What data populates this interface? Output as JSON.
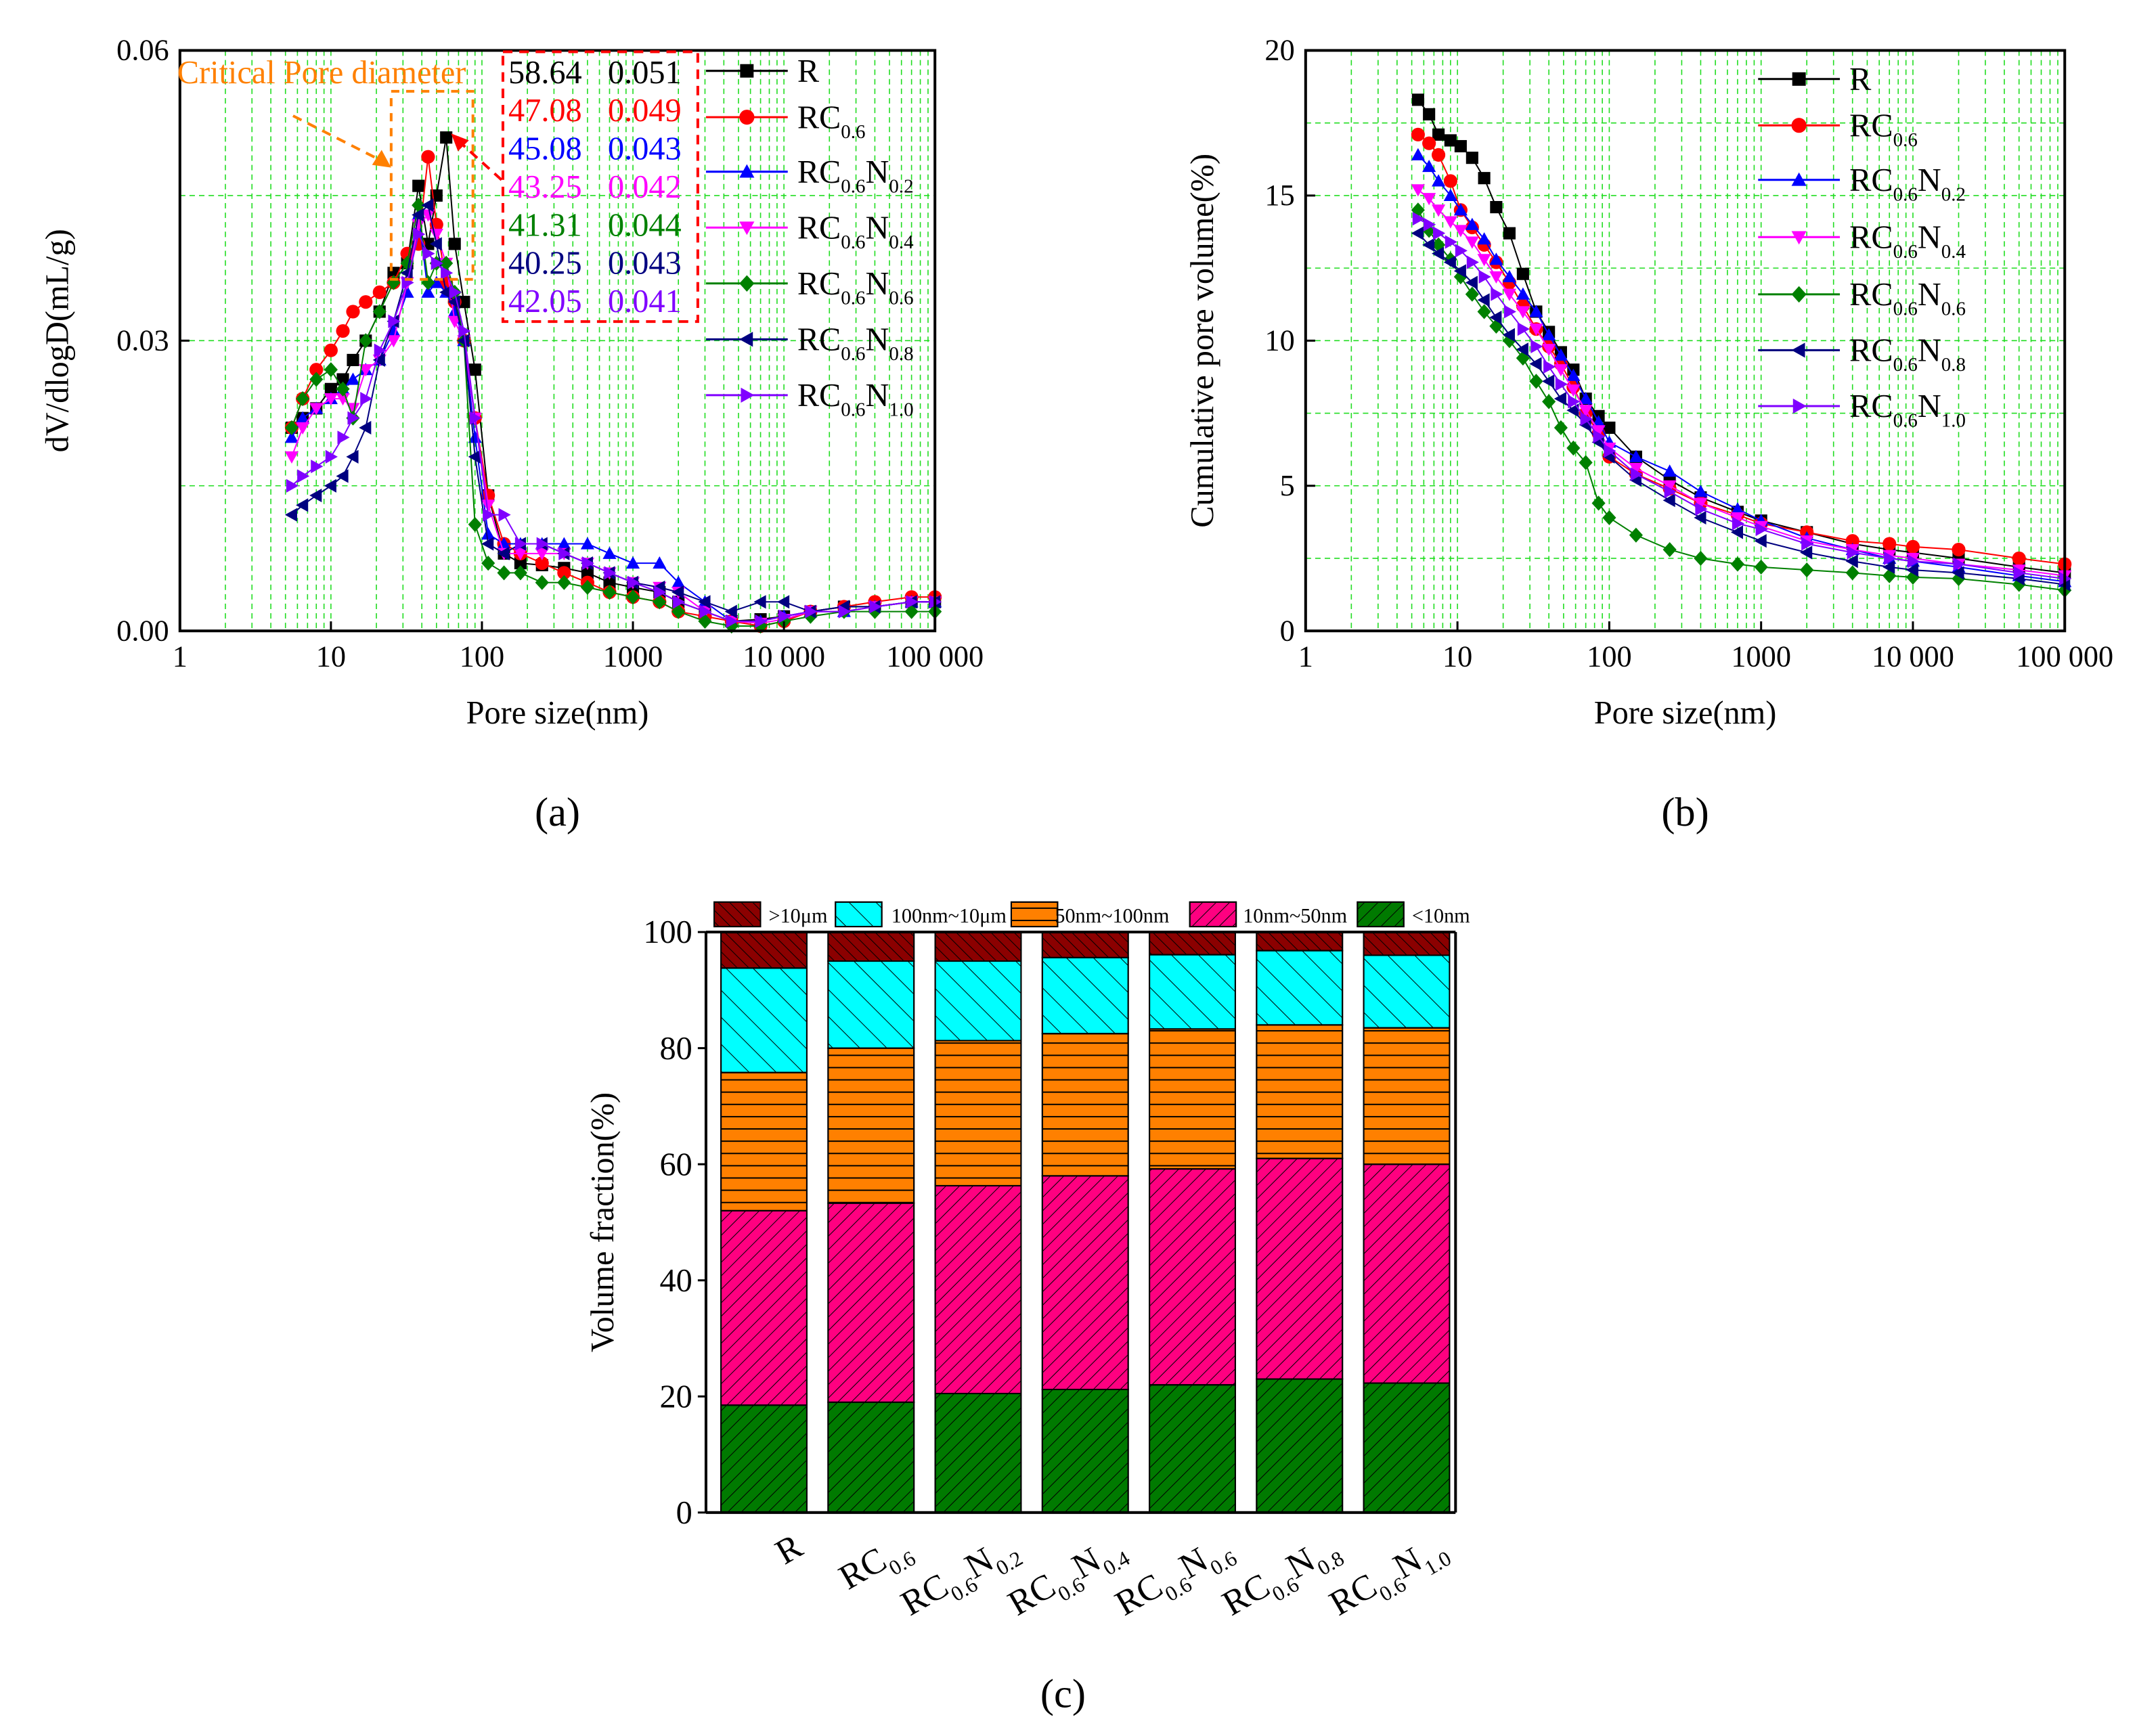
{
  "chart_data": [
    {
      "type": "line",
      "panel_label": "(a)",
      "xlabel": "Pore size(nm)",
      "ylabel": "dV/dlogD(mL/g)",
      "xscale": "log",
      "xlim": [
        1,
        100000
      ],
      "ylim": [
        0,
        0.06
      ],
      "xticks": [
        "1",
        "10",
        "100",
        "1000",
        "10 000",
        "100 000"
      ],
      "yticks": [
        "0.00",
        "0.03",
        "0.06"
      ],
      "grid": true,
      "legend_position": "top-right",
      "annotation": "Critical Pore diameter",
      "critical_table": [
        {
          "series": "R",
          "diameter": "58.64",
          "value": "0.051",
          "color": "#000000"
        },
        {
          "series": "RC0.6",
          "diameter": "47.08",
          "value": "0.049",
          "color": "#ff0000"
        },
        {
          "series": "RC0.6N0.2",
          "diameter": "45.08",
          "value": "0.043",
          "color": "#0000ff"
        },
        {
          "series": "RC0.6N0.4",
          "diameter": "43.25",
          "value": "0.042",
          "color": "#ff00ff"
        },
        {
          "series": "RC0.6N0.6",
          "diameter": "41.31",
          "value": "0.044",
          "color": "#008000"
        },
        {
          "series": "RC0.6N0.8",
          "diameter": "40.25",
          "value": "0.043",
          "color": "#000080"
        },
        {
          "series": "RC0.6N1.0",
          "diameter": "42.05",
          "value": "0.041",
          "color": "#8000ff"
        }
      ],
      "x": [
        5.5,
        6.5,
        8,
        10,
        12,
        14,
        17,
        21,
        26,
        32,
        38,
        44,
        50,
        58,
        66,
        76,
        90,
        110,
        140,
        180,
        250,
        350,
        500,
        700,
        1000,
        1500,
        2000,
        3000,
        4500,
        7000,
        10000,
        15000,
        25000,
        40000,
        70000,
        100000
      ],
      "series": [
        {
          "name": "R",
          "color": "#000000",
          "marker": "square",
          "values": [
            0.021,
            0.022,
            0.023,
            0.025,
            0.026,
            0.028,
            0.03,
            0.033,
            0.037,
            0.038,
            0.046,
            0.04,
            0.045,
            0.051,
            0.04,
            0.034,
            0.027,
            0.014,
            0.008,
            0.007,
            0.0068,
            0.0065,
            0.006,
            0.005,
            0.0045,
            0.004,
            0.003,
            0.002,
            0.001,
            0.0012,
            0.0015,
            0.002,
            0.0025,
            0.0025,
            0.003,
            0.003
          ]
        },
        {
          "name": "RC0.6",
          "color": "#ff0000",
          "marker": "circle",
          "values": [
            0.021,
            0.024,
            0.027,
            0.029,
            0.031,
            0.033,
            0.034,
            0.035,
            0.036,
            0.039,
            0.04,
            0.049,
            0.042,
            0.036,
            0.034,
            0.03,
            0.022,
            0.014,
            0.009,
            0.008,
            0.007,
            0.006,
            0.005,
            0.004,
            0.0035,
            0.003,
            0.002,
            0.0015,
            0.001,
            0.0005,
            0.001,
            0.002,
            0.0025,
            0.003,
            0.0035,
            0.0035
          ]
        },
        {
          "name": "RC0.6N0.2",
          "color": "#0000ff",
          "marker": "triangle-up",
          "values": [
            0.02,
            0.022,
            0.023,
            0.024,
            0.025,
            0.026,
            0.027,
            0.028,
            0.031,
            0.035,
            0.043,
            0.035,
            0.036,
            0.035,
            0.033,
            0.03,
            0.02,
            0.01,
            0.009,
            0.009,
            0.009,
            0.009,
            0.009,
            0.008,
            0.007,
            0.007,
            0.005,
            0.003,
            0.001,
            0.001,
            0.0015,
            0.002,
            0.002,
            0.0025,
            0.003,
            0.003
          ]
        },
        {
          "name": "RC0.6N0.4",
          "color": "#ff00ff",
          "marker": "triangle-down",
          "values": [
            0.018,
            0.021,
            0.023,
            0.024,
            0.024,
            0.023,
            0.027,
            0.028,
            0.03,
            0.036,
            0.042,
            0.043,
            0.041,
            0.038,
            0.032,
            0.03,
            0.022,
            0.013,
            0.008,
            0.008,
            0.008,
            0.008,
            0.007,
            0.006,
            0.005,
            0.0045,
            0.004,
            0.002,
            0.001,
            0.0008,
            0.0012,
            0.002,
            0.002,
            0.0025,
            0.003,
            0.003
          ]
        },
        {
          "name": "RC0.6N0.6",
          "color": "#008000",
          "marker": "diamond",
          "values": [
            0.021,
            0.024,
            0.026,
            0.027,
            0.025,
            0.022,
            0.03,
            0.033,
            0.036,
            0.038,
            0.044,
            0.036,
            0.038,
            0.038,
            0.035,
            0.03,
            0.011,
            0.007,
            0.006,
            0.006,
            0.005,
            0.005,
            0.0045,
            0.004,
            0.0035,
            0.003,
            0.002,
            0.001,
            0.0005,
            0.0005,
            0.001,
            0.0015,
            0.002,
            0.002,
            0.002,
            0.002
          ]
        },
        {
          "name": "RC0.6N0.8",
          "color": "#000080",
          "marker": "triangle-left",
          "values": [
            0.012,
            0.013,
            0.014,
            0.015,
            0.016,
            0.018,
            0.021,
            0.028,
            0.032,
            0.037,
            0.043,
            0.044,
            0.04,
            0.035,
            0.034,
            0.03,
            0.018,
            0.009,
            0.008,
            0.009,
            0.009,
            0.008,
            0.007,
            0.006,
            0.005,
            0.0045,
            0.004,
            0.003,
            0.002,
            0.003,
            0.003,
            0.002,
            0.0025,
            0.0025,
            0.003,
            0.003
          ]
        },
        {
          "name": "RC0.6N1.0",
          "color": "#8000ff",
          "marker": "triangle-right",
          "values": [
            0.015,
            0.016,
            0.017,
            0.018,
            0.02,
            0.022,
            0.024,
            0.029,
            0.032,
            0.036,
            0.041,
            0.039,
            0.038,
            0.037,
            0.035,
            0.031,
            0.022,
            0.012,
            0.012,
            0.009,
            0.009,
            0.008,
            0.007,
            0.006,
            0.005,
            0.004,
            0.003,
            0.002,
            0.001,
            0.001,
            0.0015,
            0.002,
            0.002,
            0.0025,
            0.003,
            0.003
          ]
        }
      ]
    },
    {
      "type": "line",
      "panel_label": "(b)",
      "xlabel": "Pore size(nm)",
      "ylabel": "Cumulative pore volume(%)",
      "xscale": "log",
      "xlim": [
        1,
        100000
      ],
      "ylim": [
        0,
        20
      ],
      "xticks": [
        "1",
        "10",
        "100",
        "1000",
        "10 000",
        "100 000"
      ],
      "yticks": [
        "0",
        "5",
        "10",
        "15",
        "20"
      ],
      "grid": true,
      "legend_position": "top-right",
      "x": [
        5.5,
        6.5,
        7.5,
        9,
        10.5,
        12.5,
        15,
        18,
        22,
        27,
        33,
        40,
        48,
        58,
        70,
        85,
        100,
        150,
        250,
        400,
        700,
        1000,
        2000,
        4000,
        7000,
        10000,
        20000,
        50000,
        100000
      ],
      "series": [
        {
          "name": "R",
          "color": "#000000",
          "marker": "square",
          "values": [
            18.3,
            17.8,
            17.1,
            16.9,
            16.7,
            16.3,
            15.6,
            14.6,
            13.7,
            12.3,
            11.0,
            10.3,
            9.6,
            9.0,
            8.0,
            7.4,
            7.0,
            6.0,
            5.2,
            4.6,
            4.1,
            3.8,
            3.4,
            3.0,
            2.8,
            2.7,
            2.5,
            2.2,
            2.0
          ]
        },
        {
          "name": "RC0.6",
          "color": "#ff0000",
          "marker": "circle",
          "values": [
            17.1,
            16.8,
            16.4,
            15.5,
            14.5,
            13.9,
            13.3,
            12.7,
            12.0,
            11.2,
            10.4,
            9.8,
            9.2,
            8.4,
            7.5,
            6.8,
            6.0,
            5.4,
            4.9,
            4.4,
            4.0,
            3.7,
            3.4,
            3.1,
            3.0,
            2.9,
            2.8,
            2.5,
            2.3
          ]
        },
        {
          "name": "RC0.6N0.2",
          "color": "#0000ff",
          "marker": "triangle-up",
          "values": [
            16.4,
            16.0,
            15.5,
            15.0,
            14.5,
            14.0,
            13.5,
            12.8,
            12.2,
            11.6,
            11.0,
            10.2,
            9.5,
            8.8,
            8.0,
            7.2,
            6.5,
            6.0,
            5.5,
            4.8,
            4.2,
            3.8,
            3.2,
            2.8,
            2.5,
            2.4,
            2.2,
            1.9,
            1.7
          ]
        },
        {
          "name": "RC0.6N0.4",
          "color": "#ff00ff",
          "marker": "triangle-down",
          "values": [
            15.2,
            14.9,
            14.5,
            14.1,
            13.8,
            13.4,
            12.8,
            12.2,
            11.6,
            11.0,
            10.4,
            9.7,
            9.0,
            8.3,
            7.6,
            6.9,
            6.3,
            5.6,
            5.0,
            4.4,
            3.9,
            3.6,
            3.1,
            2.8,
            2.6,
            2.5,
            2.3,
            2.1,
            1.9
          ]
        },
        {
          "name": "RC0.6N0.6",
          "color": "#008000",
          "marker": "diamond",
          "values": [
            14.5,
            13.8,
            13.3,
            12.8,
            12.2,
            11.6,
            11.0,
            10.5,
            10.0,
            9.4,
            8.6,
            7.9,
            7.0,
            6.3,
            5.8,
            4.4,
            3.9,
            3.3,
            2.8,
            2.5,
            2.3,
            2.2,
            2.1,
            2.0,
            1.9,
            1.85,
            1.8,
            1.6,
            1.4
          ]
        },
        {
          "name": "RC0.6N0.8",
          "color": "#000080",
          "marker": "triangle-left",
          "values": [
            13.7,
            13.3,
            13.0,
            12.7,
            12.4,
            12.0,
            11.4,
            10.8,
            10.2,
            9.7,
            9.2,
            8.6,
            8.0,
            7.6,
            7.1,
            6.5,
            6.0,
            5.2,
            4.5,
            3.9,
            3.4,
            3.1,
            2.7,
            2.4,
            2.2,
            2.1,
            2.0,
            1.8,
            1.6
          ]
        },
        {
          "name": "RC0.6N1.0",
          "color": "#8000ff",
          "marker": "triangle-right",
          "values": [
            14.2,
            14.0,
            13.7,
            13.4,
            13.1,
            12.7,
            12.2,
            11.6,
            11.0,
            10.4,
            9.8,
            9.1,
            8.5,
            7.9,
            7.3,
            6.7,
            6.2,
            5.4,
            4.8,
            4.2,
            3.7,
            3.5,
            3.0,
            2.7,
            2.5,
            2.4,
            2.3,
            2.0,
            1.8
          ]
        }
      ]
    },
    {
      "type": "bar",
      "stacked": true,
      "panel_label": "(c)",
      "ylabel": "Volume fraction(%)",
      "xlabel": "",
      "ylim": [
        0,
        100
      ],
      "yticks": [
        "0",
        "20",
        "40",
        "60",
        "80",
        "100"
      ],
      "legend_position": "top",
      "categories": [
        "R",
        "RC0.6",
        "RC0.6N0.2",
        "RC0.6N0.4",
        "RC0.6N0.6",
        "RC0.6N0.8",
        "RC0.6N1.0"
      ],
      "series": [
        {
          "name": "<10nm",
          "color": "#007a00",
          "hatch": "forward",
          "values": [
            18.5,
            19.0,
            20.5,
            21.2,
            22.0,
            23.0,
            22.3
          ]
        },
        {
          "name": "10nm~50nm",
          "color": "#ff0080",
          "hatch": "forward",
          "values": [
            33.5,
            34.3,
            35.8,
            36.8,
            37.2,
            38.0,
            37.7
          ]
        },
        {
          "name": "50nm~100nm",
          "color": "#ff8000",
          "hatch": "horizontal",
          "values": [
            23.8,
            26.7,
            25.0,
            24.5,
            24.1,
            23.0,
            23.5
          ]
        },
        {
          "name": "100nm~10μm",
          "color": "#00ffff",
          "hatch": "back",
          "values": [
            18.0,
            15.0,
            13.7,
            13.1,
            12.8,
            12.8,
            12.5
          ]
        },
        {
          "name": ">10μm",
          "color": "#8b0000",
          "hatch": "back-dense",
          "values": [
            6.2,
            5.0,
            5.0,
            4.4,
            3.9,
            3.2,
            4.0
          ]
        }
      ]
    }
  ]
}
